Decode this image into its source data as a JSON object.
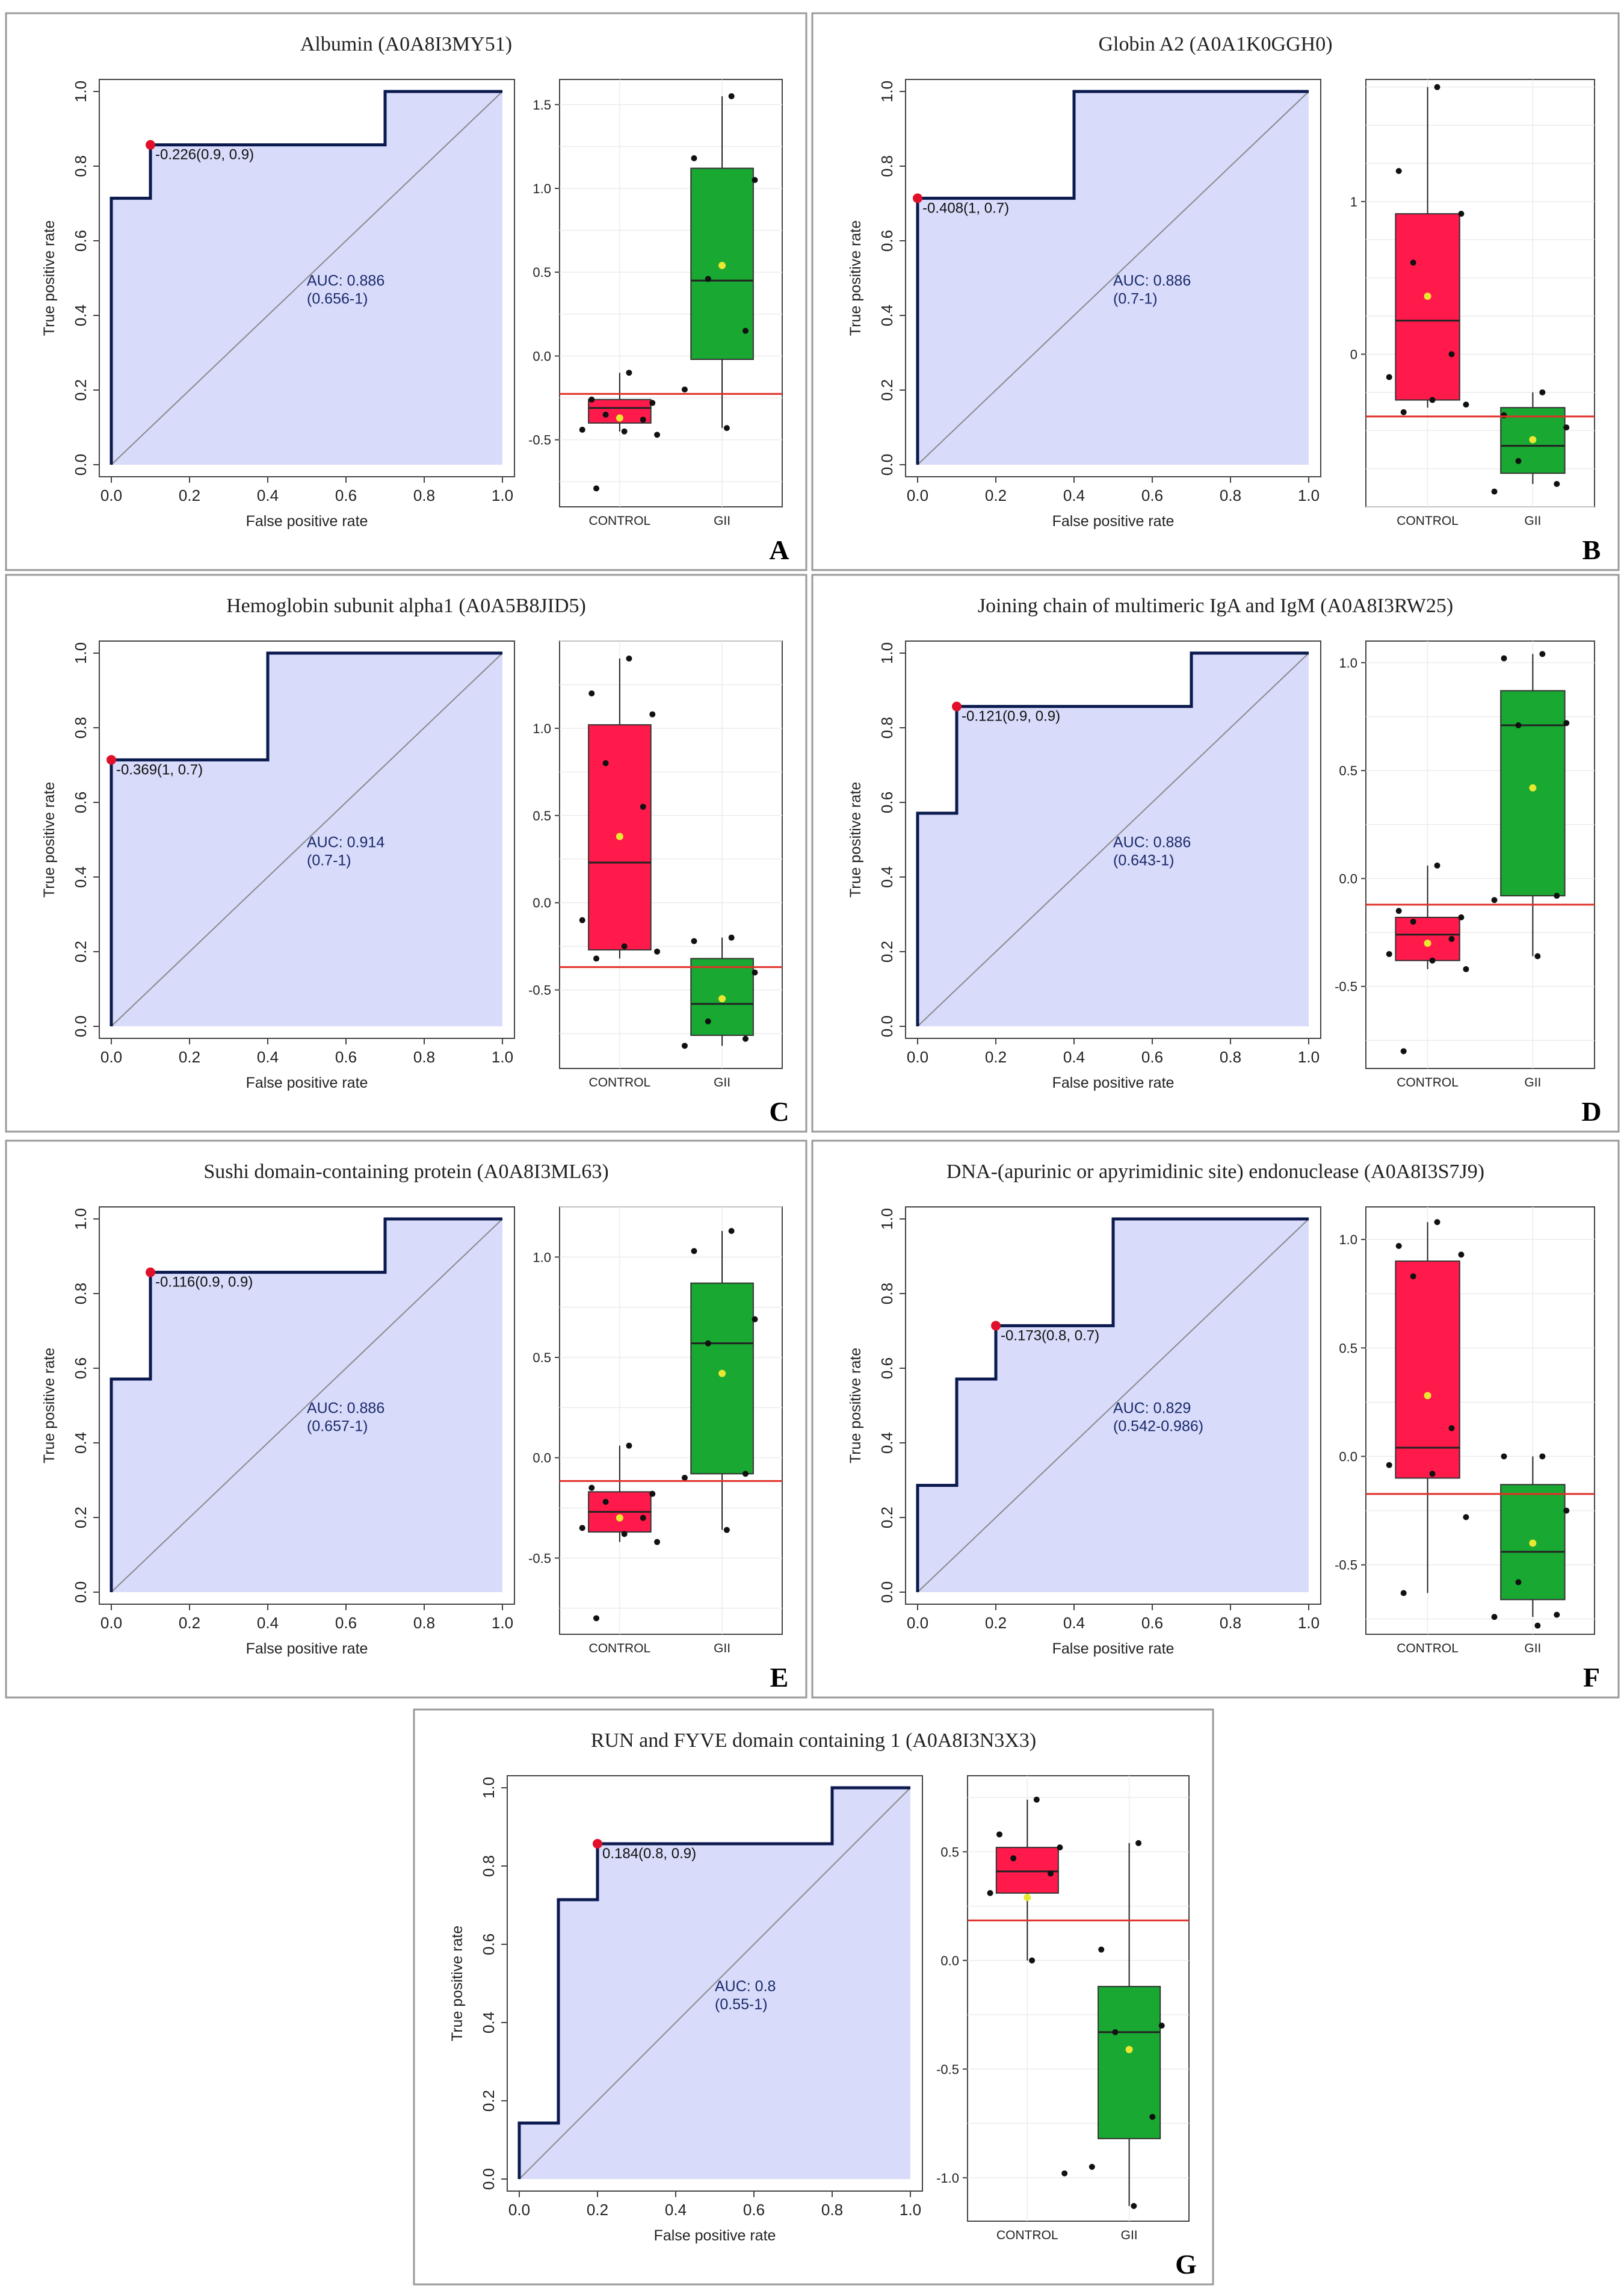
{
  "axis_labels": {
    "roc_x": "False positive rate",
    "roc_y": "True positive rate",
    "roc_ticks": [
      "0.0",
      "0.2",
      "0.4",
      "0.6",
      "0.8",
      "1.0"
    ]
  },
  "colors": {
    "control_box": "#ff1a4b",
    "gii_box": "#19a832",
    "roc_fill": "#d8dbfa",
    "roc_line": "#0b1a4e",
    "threshold_line": "#e0302a",
    "mean_dot": "#e8e830",
    "cut_point": "#e0102a"
  },
  "chart_data": [
    {
      "panel": "A",
      "title": "Albumin (A0A8I3MY51)",
      "type": "roc+boxplot",
      "roc": {
        "fpr": [
          0,
          0,
          0.1,
          0.1,
          0.7,
          0.7,
          1.0
        ],
        "tpr": [
          0,
          0.714,
          0.714,
          0.857,
          0.857,
          1.0,
          1.0
        ],
        "cut_point": {
          "fpr": 0.1,
          "tpr": 0.857
        },
        "cut_label": "-0.226(0.9, 0.9)",
        "auc_label": "AUC: 0.886",
        "ci_label": "(0.656-1)"
      },
      "box": {
        "ylim": [
          -0.9,
          1.65
        ],
        "yticks": [
          "-0.5",
          "0.0",
          "0.5",
          "1.0",
          "1.5"
        ],
        "ytick_values": [
          -0.5,
          0.0,
          0.5,
          1.0,
          1.5
        ],
        "threshold": -0.226,
        "groups": [
          {
            "name": "CONTROL",
            "q1": -0.4,
            "median": -0.31,
            "q3": -0.26,
            "whisker_low": -0.45,
            "whisker_high": -0.1,
            "mean": -0.37,
            "points": [
              -0.1,
              -0.26,
              -0.28,
              -0.35,
              -0.38,
              -0.44,
              -0.45,
              -0.47,
              -0.79
            ]
          },
          {
            "name": "GII",
            "q1": -0.02,
            "median": 0.45,
            "q3": 1.12,
            "whisker_low": -0.43,
            "whisker_high": 1.55,
            "mean": 0.54,
            "points": [
              1.55,
              1.18,
              1.05,
              0.46,
              0.15,
              -0.2,
              -0.43
            ]
          }
        ]
      }
    },
    {
      "panel": "B",
      "title": "Globin A2 (A0A1K0GGH0)",
      "type": "roc+boxplot",
      "roc": {
        "fpr": [
          0,
          0,
          0.4,
          0.4,
          1.0
        ],
        "tpr": [
          0,
          0.714,
          0.714,
          1.0,
          1.0
        ],
        "cut_point": {
          "fpr": 0.0,
          "tpr": 0.714
        },
        "cut_label": "-0.408(1, 0.7)",
        "auc_label": "AUC: 0.886",
        "ci_label": "(0.7-1)"
      },
      "box": {
        "ylim": [
          -1.0,
          1.8
        ],
        "yticks": [
          "0",
          "1"
        ],
        "ytick_values": [
          0,
          1
        ],
        "threshold": -0.408,
        "groups": [
          {
            "name": "CONTROL",
            "q1": -0.3,
            "median": 0.22,
            "q3": 0.92,
            "whisker_low": -0.35,
            "whisker_high": 1.75,
            "mean": 0.38,
            "points": [
              1.75,
              1.2,
              0.92,
              0.6,
              0.0,
              -0.15,
              -0.3,
              -0.33,
              -0.38
            ]
          },
          {
            "name": "GII",
            "q1": -0.78,
            "median": -0.6,
            "q3": -0.35,
            "whisker_low": -0.85,
            "whisker_high": -0.25,
            "mean": -0.56,
            "points": [
              -0.25,
              -0.4,
              -0.48,
              -0.7,
              -0.85,
              -0.9
            ]
          }
        ]
      }
    },
    {
      "panel": "C",
      "title": "Hemoglobin subunit alpha1 (A0A5B8JID5)",
      "type": "roc+boxplot",
      "roc": {
        "fpr": [
          0,
          0,
          0.4,
          0.4,
          1.0
        ],
        "tpr": [
          0,
          0.714,
          0.714,
          1.0,
          1.0
        ],
        "cut_point": {
          "fpr": 0.0,
          "tpr": 0.714
        },
        "cut_label": "-0.369(1, 0.7)",
        "auc_label": "AUC: 0.914",
        "ci_label": "(0.7-1)"
      },
      "box": {
        "ylim": [
          -0.95,
          1.5
        ],
        "yticks": [
          "-0.5",
          "0.0",
          "0.5",
          "1.0"
        ],
        "ytick_values": [
          -0.5,
          0.0,
          0.5,
          1.0
        ],
        "threshold": -0.369,
        "groups": [
          {
            "name": "CONTROL",
            "q1": -0.27,
            "median": 0.23,
            "q3": 1.02,
            "whisker_low": -0.32,
            "whisker_high": 1.4,
            "mean": 0.38,
            "points": [
              1.4,
              1.2,
              1.08,
              0.8,
              0.55,
              -0.1,
              -0.25,
              -0.28,
              -0.32
            ]
          },
          {
            "name": "GII",
            "q1": -0.76,
            "median": -0.58,
            "q3": -0.32,
            "whisker_low": -0.82,
            "whisker_high": -0.2,
            "mean": -0.55,
            "points": [
              -0.2,
              -0.22,
              -0.4,
              -0.68,
              -0.78,
              -0.82
            ]
          }
        ]
      }
    },
    {
      "panel": "D",
      "title": "Joining chain of multimeric IgA and IgM (A0A8I3RW25)",
      "type": "roc+boxplot",
      "roc": {
        "fpr": [
          0,
          0,
          0.1,
          0.1,
          0.7,
          0.7,
          1.0
        ],
        "tpr": [
          0,
          0.571,
          0.571,
          0.857,
          0.857,
          1.0,
          1.0
        ],
        "cut_point": {
          "fpr": 0.1,
          "tpr": 0.857
        },
        "cut_label": "-0.121(0.9, 0.9)",
        "auc_label": "AUC: 0.886",
        "ci_label": "(0.643-1)"
      },
      "box": {
        "ylim": [
          -0.88,
          1.1
        ],
        "yticks": [
          "-0.5",
          "0.0",
          "0.5",
          "1.0"
        ],
        "ytick_values": [
          -0.5,
          0.0,
          0.5,
          1.0
        ],
        "threshold": -0.121,
        "groups": [
          {
            "name": "CONTROL",
            "q1": -0.38,
            "median": -0.26,
            "q3": -0.18,
            "whisker_low": -0.42,
            "whisker_high": 0.06,
            "mean": -0.3,
            "points": [
              0.06,
              -0.15,
              -0.18,
              -0.2,
              -0.28,
              -0.35,
              -0.38,
              -0.42,
              -0.8
            ]
          },
          {
            "name": "GII",
            "q1": -0.08,
            "median": 0.71,
            "q3": 0.87,
            "whisker_low": -0.36,
            "whisker_high": 1.04,
            "mean": 0.42,
            "points": [
              1.04,
              1.02,
              0.72,
              0.71,
              -0.08,
              -0.1,
              -0.36
            ]
          }
        ]
      }
    },
    {
      "panel": "E",
      "title": "Sushi domain-containing protein (A0A8I3ML63)",
      "type": "roc+boxplot",
      "roc": {
        "fpr": [
          0,
          0,
          0.1,
          0.1,
          0.7,
          0.7,
          1.0
        ],
        "tpr": [
          0,
          0.571,
          0.571,
          0.857,
          0.857,
          1.0,
          1.0
        ],
        "cut_point": {
          "fpr": 0.1,
          "tpr": 0.857
        },
        "cut_label": "-0.116(0.9, 0.9)",
        "auc_label": "AUC: 0.886",
        "ci_label": "(0.657-1)"
      },
      "box": {
        "ylim": [
          -0.88,
          1.25
        ],
        "yticks": [
          "-0.5",
          "0.0",
          "0.5",
          "1.0"
        ],
        "ytick_values": [
          -0.5,
          0.0,
          0.5,
          1.0
        ],
        "threshold": -0.116,
        "groups": [
          {
            "name": "CONTROL",
            "q1": -0.37,
            "median": -0.27,
            "q3": -0.17,
            "whisker_low": -0.42,
            "whisker_high": 0.06,
            "mean": -0.3,
            "points": [
              0.06,
              -0.15,
              -0.18,
              -0.22,
              -0.3,
              -0.35,
              -0.38,
              -0.42,
              -0.8
            ]
          },
          {
            "name": "GII",
            "q1": -0.08,
            "median": 0.57,
            "q3": 0.87,
            "whisker_low": -0.36,
            "whisker_high": 1.13,
            "mean": 0.42,
            "points": [
              1.13,
              1.03,
              0.69,
              0.57,
              -0.08,
              -0.1,
              -0.36
            ]
          }
        ]
      }
    },
    {
      "panel": "F",
      "title": "DNA-(apurinic or apyrimidinic site) endonuclease (A0A8I3S7J9)",
      "type": "roc+boxplot",
      "roc": {
        "fpr": [
          0,
          0,
          0.1,
          0.1,
          0.2,
          0.2,
          0.5,
          0.5,
          1.0
        ],
        "tpr": [
          0,
          0.286,
          0.286,
          0.571,
          0.571,
          0.714,
          0.714,
          1.0,
          1.0
        ],
        "cut_point": {
          "fpr": 0.2,
          "tpr": 0.714
        },
        "cut_label": "-0.173(0.8, 0.7)",
        "auc_label": "AUC: 0.829",
        "ci_label": "(0.542-0.986)"
      },
      "box": {
        "ylim": [
          -0.82,
          1.15
        ],
        "yticks": [
          "-0.5",
          "0.0",
          "0.5",
          "1.0"
        ],
        "ytick_values": [
          -0.5,
          0.0,
          0.5,
          1.0
        ],
        "threshold": -0.173,
        "groups": [
          {
            "name": "CONTROL",
            "q1": -0.1,
            "median": 0.04,
            "q3": 0.9,
            "whisker_low": -0.63,
            "whisker_high": 1.08,
            "mean": 0.28,
            "points": [
              1.08,
              0.97,
              0.93,
              0.83,
              0.13,
              -0.04,
              -0.08,
              -0.28,
              -0.63
            ]
          },
          {
            "name": "GII",
            "q1": -0.66,
            "median": -0.44,
            "q3": -0.13,
            "whisker_low": -0.74,
            "whisker_high": 0.0,
            "mean": -0.4,
            "points": [
              0.0,
              0.0,
              -0.25,
              -0.58,
              -0.73,
              -0.74,
              -0.78
            ]
          }
        ]
      }
    },
    {
      "panel": "G",
      "title": "RUN and FYVE domain containing 1 (A0A8I3N3X3)",
      "type": "roc+boxplot",
      "roc": {
        "fpr": [
          0,
          0,
          0.1,
          0.1,
          0.2,
          0.2,
          0.8,
          0.8,
          1.0
        ],
        "tpr": [
          0,
          0.143,
          0.143,
          0.714,
          0.714,
          0.857,
          0.857,
          1.0,
          1.0
        ],
        "cut_point": {
          "fpr": 0.2,
          "tpr": 0.857
        },
        "cut_label": "0.184(0.8, 0.9)",
        "auc_label": "AUC: 0.8",
        "ci_label": "(0.55-1)"
      },
      "box": {
        "ylim": [
          -1.2,
          0.85
        ],
        "yticks": [
          "-1.0",
          "-0.5",
          "0.0",
          "0.5"
        ],
        "ytick_values": [
          -1.0,
          -0.5,
          0.0,
          0.5
        ],
        "threshold": 0.184,
        "groups": [
          {
            "name": "CONTROL",
            "q1": 0.31,
            "median": 0.41,
            "q3": 0.52,
            "whisker_low": 0.0,
            "whisker_high": 0.74,
            "mean": 0.29,
            "points": [
              0.74,
              0.58,
              0.52,
              0.47,
              0.4,
              0.31,
              0.0,
              -0.98
            ]
          },
          {
            "name": "GII",
            "q1": -0.82,
            "median": -0.33,
            "q3": -0.12,
            "whisker_low": -1.13,
            "whisker_high": 0.54,
            "mean": -0.41,
            "points": [
              0.54,
              0.05,
              -0.3,
              -0.33,
              -0.72,
              -0.95,
              -1.13
            ]
          }
        ]
      }
    }
  ]
}
